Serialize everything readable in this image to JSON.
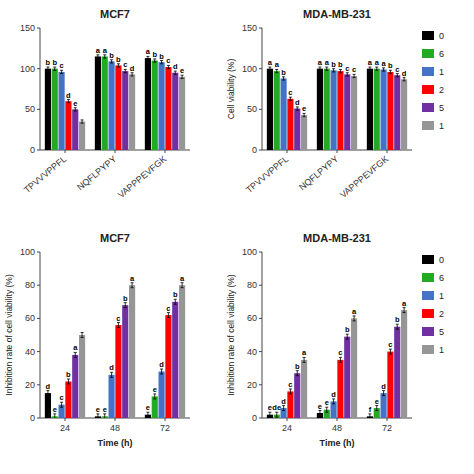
{
  "chart_data": [
    {
      "type": "bar",
      "title": "MCF7",
      "categories": [
        "TPVVVPPFL",
        "NQFLPYPY",
        "VAPPPEVFGK"
      ],
      "ylim": [
        0,
        150
      ],
      "yticks": [
        0,
        50,
        100,
        150
      ],
      "series": [
        {
          "color": "#000000",
          "values": [
            100,
            115,
            113
          ],
          "errors": [
            2,
            2,
            2
          ],
          "annotations": [
            "b",
            "a",
            "a"
          ]
        },
        {
          "color": "#22aa22",
          "values": [
            100,
            115,
            110
          ],
          "errors": [
            2,
            2,
            2
          ],
          "annotations": [
            "b",
            "a",
            "b"
          ]
        },
        {
          "color": "#4472c4",
          "values": [
            96,
            109,
            108
          ],
          "errors": [
            2,
            2,
            2
          ],
          "annotations": [
            "c",
            "b",
            "b"
          ]
        },
        {
          "color": "#ff0000",
          "values": [
            60,
            104,
            102
          ],
          "errors": [
            2,
            2,
            2
          ],
          "annotations": [
            "d",
            "b",
            "c"
          ]
        },
        {
          "color": "#7030a0",
          "values": [
            50,
            97,
            95
          ],
          "errors": [
            2,
            2,
            2
          ],
          "annotations": [
            "e",
            "c",
            "d"
          ]
        },
        {
          "color": "#969696",
          "values": [
            35,
            93,
            90
          ],
          "errors": [
            2,
            2,
            2
          ],
          "annotations": [
            null,
            "d",
            "e"
          ]
        }
      ]
    },
    {
      "type": "bar",
      "title": "MDA-MB-231",
      "ylabel": "Cell viability (%)",
      "categories": [
        "TPVVVPPFL",
        "NQFLPYPY",
        "VAPPPEVFGK"
      ],
      "ylim": [
        0,
        150
      ],
      "yticks": [
        0,
        50,
        100,
        150
      ],
      "legend": "right",
      "series": [
        {
          "name": "0",
          "color": "#000000",
          "values": [
            100,
            100,
            100
          ],
          "errors": [
            2,
            2,
            2
          ],
          "annotations": [
            "a",
            "a",
            "a"
          ]
        },
        {
          "name": "6",
          "color": "#22aa22",
          "values": [
            97,
            100,
            100
          ],
          "errors": [
            2,
            2,
            2
          ],
          "annotations": [
            "a",
            "a",
            "a"
          ]
        },
        {
          "name": "1",
          "color": "#4472c4",
          "values": [
            88,
            98,
            99
          ],
          "errors": [
            2,
            2,
            2
          ],
          "annotations": [
            "b",
            "b",
            "a"
          ]
        },
        {
          "name": "2",
          "color": "#ff0000",
          "values": [
            63,
            97,
            96
          ],
          "errors": [
            2,
            2,
            2
          ],
          "annotations": [
            "c",
            "b",
            "b"
          ]
        },
        {
          "name": "5",
          "color": "#7030a0",
          "values": [
            51,
            93,
            92
          ],
          "errors": [
            2,
            2,
            2
          ],
          "annotations": [
            "d",
            "c",
            "c"
          ]
        },
        {
          "name": "1",
          "color": "#969696",
          "values": [
            43,
            91,
            87
          ],
          "errors": [
            2,
            2,
            2
          ],
          "annotations": [
            "e",
            "c",
            "d"
          ]
        }
      ]
    },
    {
      "type": "bar",
      "title": "MCF7",
      "ylabel": "Inhibition rate of cell viability (%)",
      "xlabel": "Time (h)",
      "categories": [
        "24",
        "48",
        "72"
      ],
      "ylim": [
        0,
        100
      ],
      "yticks": [
        0,
        20,
        40,
        60,
        80,
        100
      ],
      "series": [
        {
          "color": "#000000",
          "values": [
            15,
            1,
            2
          ],
          "errors": [
            1.5,
            1.5,
            1.5
          ],
          "annotations": [
            "d",
            "e",
            "e"
          ]
        },
        {
          "color": "#22aa22",
          "values": [
            1,
            1,
            13
          ],
          "errors": [
            1.5,
            1.5,
            1.5
          ],
          "annotations": [
            "e",
            "e",
            "e"
          ]
        },
        {
          "color": "#4472c4",
          "values": [
            8,
            26,
            28
          ],
          "errors": [
            1.5,
            1.5,
            1.5
          ],
          "annotations": [
            "c",
            "d",
            "d"
          ]
        },
        {
          "color": "#ff0000",
          "values": [
            22,
            56,
            62
          ],
          "errors": [
            1.5,
            1.5,
            1.5
          ],
          "annotations": [
            "b",
            "c",
            "c"
          ]
        },
        {
          "color": "#7030a0",
          "values": [
            38,
            68,
            70
          ],
          "errors": [
            1.5,
            1.5,
            1.5
          ],
          "annotations": [
            "a",
            "b",
            "b"
          ]
        },
        {
          "color": "#969696",
          "values": [
            50,
            80,
            80
          ],
          "errors": [
            1.5,
            1.5,
            1.5
          ],
          "annotations": [
            null,
            "a",
            "a"
          ]
        }
      ]
    },
    {
      "type": "bar",
      "title": "MDA-MB-231",
      "ylabel": "Inhibition rate of cell viability (%)",
      "xlabel": "Time (h)",
      "categories": [
        "24",
        "48",
        "72"
      ],
      "ylim": [
        0,
        100
      ],
      "yticks": [
        0,
        20,
        40,
        60,
        80,
        100
      ],
      "legend": "right",
      "series": [
        {
          "name": "0",
          "color": "#000000",
          "values": [
            2,
            3,
            1
          ],
          "errors": [
            1.5,
            1.5,
            1.5
          ],
          "annotations": [
            "e",
            "e",
            "f"
          ]
        },
        {
          "name": "6",
          "color": "#22aa22",
          "values": [
            2,
            5,
            6
          ],
          "errors": [
            1.5,
            1.5,
            1.5
          ],
          "annotations": [
            "de",
            "e",
            "e"
          ]
        },
        {
          "name": "1",
          "color": "#4472c4",
          "values": [
            6,
            10,
            15
          ],
          "errors": [
            1.5,
            1.5,
            1.5
          ],
          "annotations": [
            "d",
            "d",
            "d"
          ]
        },
        {
          "name": "2",
          "color": "#ff0000",
          "values": [
            16,
            35,
            40
          ],
          "errors": [
            1.5,
            1.5,
            1.5
          ],
          "annotations": [
            "c",
            "c",
            "c"
          ]
        },
        {
          "name": "5",
          "color": "#7030a0",
          "values": [
            27,
            49,
            55
          ],
          "errors": [
            1.5,
            1.5,
            1.5
          ],
          "annotations": [
            "b",
            "b",
            "b"
          ]
        },
        {
          "name": "1",
          "color": "#969696",
          "values": [
            35,
            60,
            65
          ],
          "errors": [
            1.5,
            1.5,
            1.5
          ],
          "annotations": [
            "a",
            "a",
            "a"
          ]
        }
      ]
    }
  ]
}
